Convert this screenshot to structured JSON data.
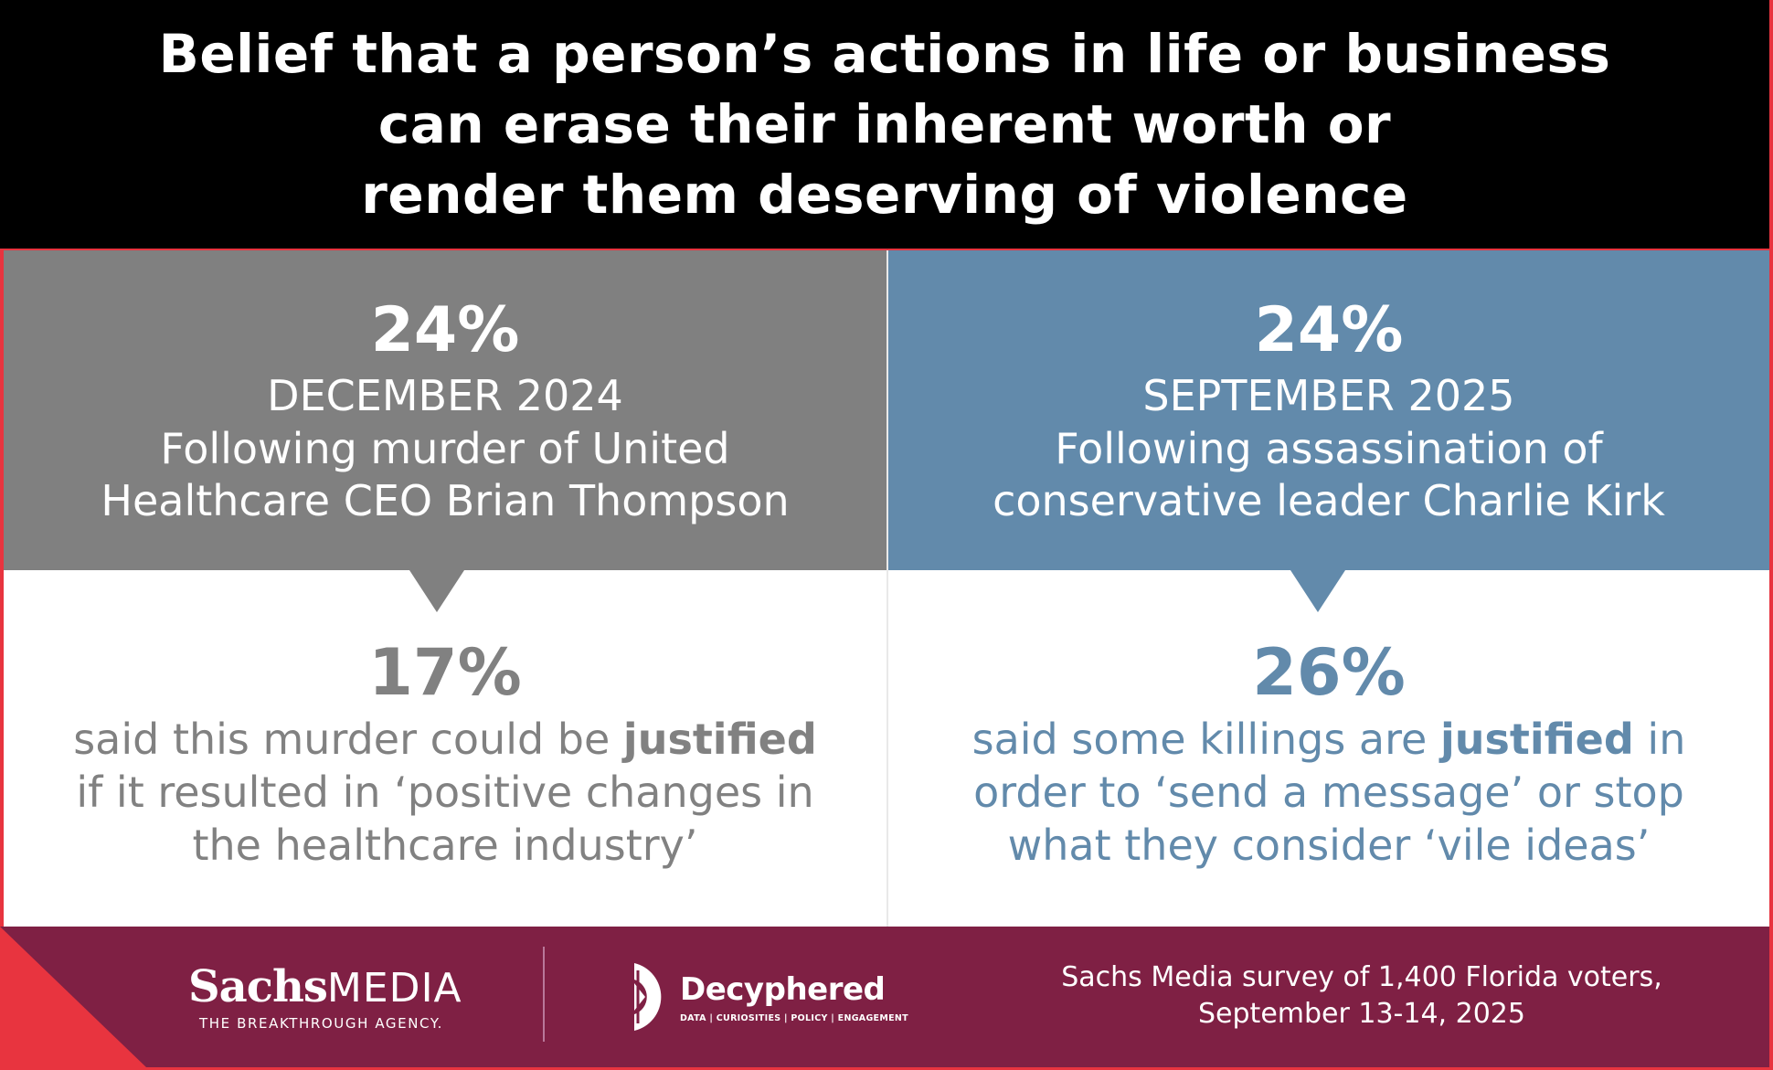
{
  "title": {
    "lines": [
      "Belief that a person’s actions in life or business",
      "can erase their inherent worth or",
      "render them deserving of violence"
    ]
  },
  "left": {
    "percent": "24%",
    "date": "DECEMBER 2024",
    "desc_lines": [
      "Following murder of United",
      "Healthcare CEO Brian Thompson"
    ],
    "stat_percent": "17%",
    "stat_lines": [
      {
        "pre": "said this murder could be ",
        "bold": "justified",
        "post": ""
      },
      {
        "pre": "if it resulted in ‘positive changes in",
        "bold": "",
        "post": ""
      },
      {
        "pre": "the healthcare industry’",
        "bold": "",
        "post": ""
      }
    ],
    "color": "#808080"
  },
  "right": {
    "percent": "24%",
    "date": "SEPTEMBER 2025",
    "desc_lines": [
      "Following assassination of",
      "conservative leader Charlie Kirk"
    ],
    "stat_percent": "26%",
    "stat_lines": [
      {
        "pre": "said some killings are ",
        "bold": "justified",
        "post": " in"
      },
      {
        "pre": "order to ‘send a message’ or stop",
        "bold": "",
        "post": ""
      },
      {
        "pre": "what they consider ‘vile ideas’",
        "bold": "",
        "post": ""
      }
    ],
    "color": "#628aab"
  },
  "footer": {
    "sachs_bold": "Sachs",
    "sachs_light": "MEDIA",
    "sachs_tagline": "THE BREAKTHROUGH AGENCY.",
    "decyphered_name": "Decyphered",
    "decyphered_tagline": "DATA | CURIOSITIES | POLICY | ENGAGEMENT",
    "source_lines": [
      "Sachs Media survey of 1,400 Florida voters,",
      "September 13-14, 2025"
    ],
    "color": "#7f2044",
    "accent": "#e8343f"
  }
}
